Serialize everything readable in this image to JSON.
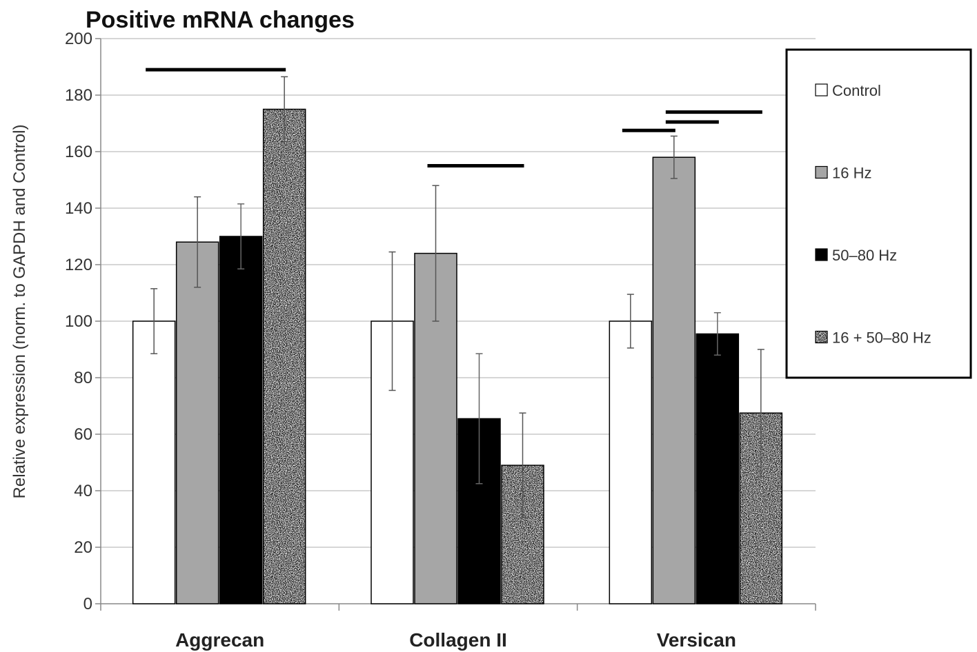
{
  "chart_data": {
    "type": "bar",
    "title": "Positive mRNA changes",
    "xlabel": "",
    "ylabel": "Relative expression  (norm. to GAPDH and Control)",
    "ylim": [
      0,
      200
    ],
    "yticks": [
      0,
      20,
      40,
      60,
      80,
      100,
      120,
      140,
      160,
      180,
      200
    ],
    "grid": true,
    "legend_position": "right",
    "categories": [
      "Aggrecan",
      "Collagen II",
      "Versican"
    ],
    "series": [
      {
        "name": "Control",
        "color": "#ffffff",
        "values": [
          100,
          100,
          100
        ],
        "errors": [
          11.5,
          24.5,
          9.5
        ]
      },
      {
        "name": "16 Hz",
        "color": "#a6a6a6",
        "values": [
          128,
          124,
          158
        ],
        "errors": [
          16,
          24,
          7.5
        ]
      },
      {
        "name": "50–80 Hz",
        "color": "#000000",
        "values": [
          130,
          65.5,
          95.5
        ],
        "errors": [
          11.5,
          23,
          7.5
        ]
      },
      {
        "name": "16 + 50–80 Hz",
        "color": "#b4b4b4",
        "pattern": "speckled",
        "values": [
          175,
          49,
          67.5
        ],
        "errors": [
          11.5,
          18.5,
          22.5
        ]
      }
    ],
    "significance_bars": [
      {
        "category": "Aggrecan",
        "from_series": 0,
        "to_series": 3,
        "y": 189
      },
      {
        "category": "Collagen II",
        "from_series": 1,
        "to_series": 3,
        "y": 155
      },
      {
        "category": "Versican",
        "from_series": 0,
        "to_series": 1,
        "y": 167.5
      },
      {
        "category": "Versican",
        "from_series": 1,
        "to_series": 2,
        "y": 170.5
      },
      {
        "category": "Versican",
        "from_series": 1,
        "to_series": 3,
        "y": 174
      }
    ]
  }
}
